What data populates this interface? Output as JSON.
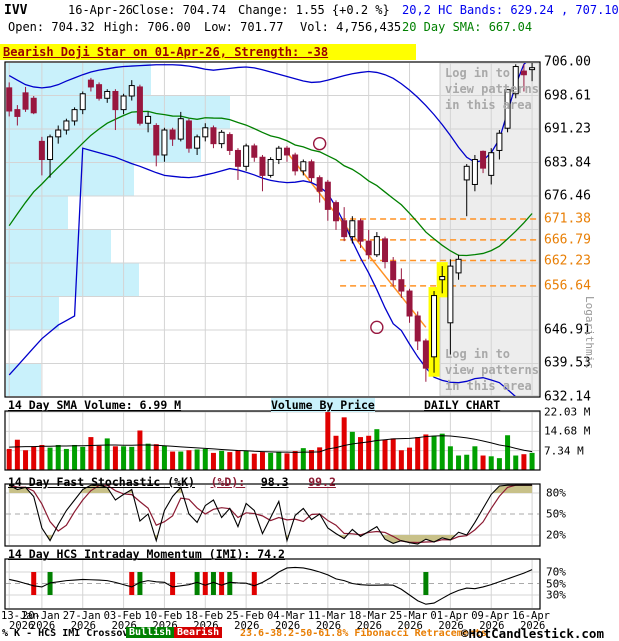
{
  "header": {
    "symbol": "IVV",
    "date": "16-Apr-26",
    "close_label": "Close: 704.74",
    "change_label": "Change: 1.55 {+0.2 %}",
    "bands_label": "20,2 HC Bands: 629.24 , 707.10",
    "open_label": "Open: 704.32",
    "high_label": "High: 706.00",
    "low_label": "Low: 701.77",
    "vol_label": "Vol: 4,756,435",
    "sma_label": "20 Day SMA: 667.04"
  },
  "pattern_banner": "Bearish Doji Star on 01-Apr-26, Strength: -38",
  "login": {
    "line1": "Log in to",
    "line2": "view patterns",
    "line3": "in this area"
  },
  "axis": {
    "log_label": "Logarithmic",
    "volume_labels": [
      "22.03 M",
      "14.68 M",
      "7.34 M"
    ],
    "stoch_labels": [
      "80%",
      "50%",
      "20%"
    ],
    "imi_labels": [
      "70%",
      "50%",
      "30%"
    ]
  },
  "panels": {
    "volume_title": "14 Day SMA Volume: 6.99 M",
    "vbp_title": "Volume By Price",
    "daily_chart": "DAILY CHART",
    "stoch_title": "14 Day Fast Stochastic (%K)",
    "stoch_d_label": "(%D):",
    "stoch_k_val": "98.3",
    "stoch_d_val": "99.2",
    "imi_title": "14 Day HCS Intraday Momentum (IMI): 74.2"
  },
  "legend": {
    "crossover": "% K - HCS IMI Crossover,",
    "bullish": "Bullish",
    "bearish": "Bearish",
    "fib": "23.6-38.2-50-61.8% Fibonacci Retracements",
    "copyright": "©HotCandlestick.com"
  },
  "colors": {
    "bear": "#98173f",
    "bull_fill": "#ffffff",
    "bull_stroke": "#000000",
    "band_blue": "#0000cc",
    "sma_green": "#008000",
    "fib_orange": "#ff9224",
    "fib_label": "#e87e04",
    "vbp_cyan": "#c9f1fb",
    "grid": "#d4d4d4",
    "vol_up": "#00a000",
    "vol_down": "#e00000",
    "stoch_d": "#8b1a32",
    "olive": "#c8c189",
    "overlay_bg": "#ededed",
    "overlay_border": "#c8c8c8",
    "highlight": "#ffff00",
    "marker_bull": "#008000",
    "marker_bear": "#e00000"
  },
  "chart_data": {
    "type": "candlestick",
    "title": "IVV daily candlestick chart with 20,2 HC Bands, 20-day SMA, Fibonacci retracements, volume, fast stochastic and intraday momentum",
    "n": 65,
    "ylim": [
      632.14,
      706.0
    ],
    "scale": "Logarithmic",
    "gridline_prices": [
      706.0,
      698.61,
      691.23,
      683.84,
      676.46,
      669.07,
      661.68,
      654.3,
      646.91,
      639.53,
      632.14
    ],
    "price_labels": [
      {
        "v": 706.0,
        "t": "706.00",
        "c": "#000000"
      },
      {
        "v": 698.61,
        "t": "698.61",
        "c": "#000000"
      },
      {
        "v": 691.23,
        "t": "691.23",
        "c": "#000000"
      },
      {
        "v": 683.84,
        "t": "683.84",
        "c": "#000000"
      },
      {
        "v": 676.46,
        "t": "676.46",
        "c": "#000000"
      },
      {
        "v": 671.38,
        "t": "671.38",
        "c": "#e87e04"
      },
      {
        "v": 666.79,
        "t": "666.79",
        "c": "#e87e04"
      },
      {
        "v": 662.23,
        "t": "662.23",
        "c": "#e87e04"
      },
      {
        "v": 656.64,
        "t": "656.64",
        "c": "#e87e04"
      },
      {
        "v": 646.91,
        "t": "646.91",
        "c": "#000000"
      },
      {
        "v": 639.53,
        "t": "639.53",
        "c": "#000000"
      },
      {
        "v": 632.14,
        "t": "632.14",
        "c": "#000000"
      }
    ],
    "fib_levels": [
      671.38,
      666.79,
      662.23,
      656.64
    ],
    "fib_dash_start_index": 40.5,
    "fib_diagonal": {
      "i1": 34,
      "p1": 686.1,
      "i2": 51,
      "p2": 647.5
    },
    "candles": [
      [
        700.3,
        701.5,
        694.0,
        695.2
      ],
      [
        695.5,
        696.5,
        692.0,
        694.0
      ],
      [
        699.2,
        700.5,
        695.0,
        695.6
      ],
      [
        698.0,
        698.5,
        694.5,
        694.8
      ],
      [
        688.5,
        689.5,
        681.0,
        684.5
      ],
      [
        684.5,
        690.0,
        680.5,
        689.5
      ],
      [
        689.5,
        692.0,
        688.0,
        691.0
      ],
      [
        691.0,
        693.5,
        690.0,
        693.0
      ],
      [
        693.0,
        696.0,
        692.0,
        695.5
      ],
      [
        695.5,
        699.5,
        694.5,
        699.0
      ],
      [
        702.0,
        702.5,
        699.5,
        700.5
      ],
      [
        701.0,
        701.5,
        697.5,
        698.0
      ],
      [
        698.0,
        700.0,
        697.0,
        699.5
      ],
      [
        699.5,
        700.0,
        691.0,
        695.5
      ],
      [
        695.5,
        699.0,
        694.5,
        698.5
      ],
      [
        698.5,
        702.0,
        697.5,
        700.8
      ],
      [
        700.5,
        701.0,
        692.0,
        692.5
      ],
      [
        692.5,
        695.0,
        690.5,
        694.0
      ],
      [
        692.0,
        692.5,
        683.0,
        685.5
      ],
      [
        685.5,
        691.5,
        684.0,
        691.0
      ],
      [
        691.0,
        691.5,
        687.5,
        689.0
      ],
      [
        689.0,
        695.0,
        688.5,
        693.5
      ],
      [
        693.0,
        693.5,
        686.0,
        687.0
      ],
      [
        687.0,
        690.0,
        685.5,
        689.5
      ],
      [
        689.5,
        692.5,
        688.5,
        691.5
      ],
      [
        691.5,
        692.0,
        687.0,
        688.0
      ],
      [
        688.0,
        691.0,
        687.0,
        690.5
      ],
      [
        690.0,
        690.5,
        685.5,
        686.5
      ],
      [
        686.5,
        687.0,
        680.0,
        683.0
      ],
      [
        683.0,
        688.0,
        682.0,
        687.5
      ],
      [
        687.5,
        688.0,
        684.0,
        685.0
      ],
      [
        685.0,
        685.5,
        677.5,
        681.0
      ],
      [
        681.0,
        685.0,
        680.5,
        684.5
      ],
      [
        684.5,
        687.5,
        683.5,
        687.0
      ],
      [
        687.0,
        687.5,
        684.0,
        685.5
      ],
      [
        685.5,
        686.0,
        681.0,
        682.0
      ],
      [
        682.0,
        684.5,
        681.0,
        684.0
      ],
      [
        684.0,
        684.5,
        679.5,
        680.5
      ],
      [
        680.5,
        681.0,
        675.0,
        677.5
      ],
      [
        679.5,
        680.0,
        671.0,
        673.5
      ],
      [
        675.0,
        675.5,
        669.0,
        671.0
      ],
      [
        671.0,
        674.0,
        666.5,
        667.5
      ],
      [
        667.5,
        672.0,
        666.0,
        671.0
      ],
      [
        671.0,
        671.5,
        665.0,
        666.5
      ],
      [
        666.5,
        669.0,
        662.5,
        663.5
      ],
      [
        663.5,
        668.5,
        663.0,
        667.5
      ],
      [
        667.0,
        667.5,
        660.5,
        662.0
      ],
      [
        662.0,
        663.0,
        656.5,
        658.0
      ],
      [
        658.0,
        660.5,
        654.0,
        655.5
      ],
      [
        655.5,
        656.0,
        648.5,
        650.0
      ],
      [
        650.0,
        651.0,
        642.5,
        644.5
      ],
      [
        644.5,
        645.0,
        635.5,
        638.5
      ],
      [
        641.0,
        655.5,
        637.5,
        654.5
      ],
      [
        658.0,
        661.0,
        655.0,
        658.7
      ],
      [
        648.5,
        662.5,
        641.5,
        661.0
      ],
      [
        659.5,
        663.5,
        658.0,
        662.5
      ],
      [
        680.0,
        683.5,
        672.0,
        683.0
      ],
      [
        679.0,
        685.5,
        677.5,
        684.5
      ],
      [
        686.3,
        686.5,
        681.5,
        682.6
      ],
      [
        681.0,
        687.0,
        679.0,
        686.0
      ],
      [
        686.5,
        691.0,
        684.5,
        690.3
      ],
      [
        691.4,
        700.0,
        690.5,
        699.9
      ],
      [
        699.0,
        705.5,
        698.0,
        705.0
      ],
      [
        704.0,
        705.5,
        699.5,
        703.19
      ],
      [
        704.32,
        706.0,
        701.77,
        704.74
      ]
    ],
    "prior_closes": [
      640,
      642,
      645,
      648,
      650,
      652,
      655,
      658,
      660,
      663,
      666,
      670,
      674,
      678,
      682,
      686,
      690,
      693,
      695,
      696
    ],
    "upper_band": [
      703,
      702,
      701,
      700.5,
      700.3,
      700.5,
      701,
      701.8,
      702.5,
      703.2,
      703.8,
      704.2,
      704.5,
      704.8,
      705,
      705.1,
      705.2,
      705.3,
      705.4,
      705.4,
      705.4,
      705.3,
      705.1,
      704.8,
      704.4,
      704.2,
      704.4,
      704.6,
      704.8,
      704.9,
      704.7,
      704.3,
      703.8,
      703.3,
      702.8,
      702.3,
      701.8,
      701.5,
      701.6,
      702,
      702.5,
      703,
      703.4,
      703.7,
      703.9,
      703.7,
      703.2,
      702.4,
      701.2,
      699.8,
      698.2,
      696.4,
      694.4,
      692.2,
      689.8,
      687.2,
      685,
      683.9,
      684.3,
      686,
      689,
      695,
      701,
      705.5,
      707.1
    ],
    "lower_band": [
      637,
      639,
      641,
      643,
      645,
      646.5,
      648,
      649,
      650,
      687,
      686.5,
      686,
      685.5,
      685,
      684.3,
      683.6,
      683,
      682.3,
      681.6,
      681,
      680.8,
      680.6,
      680.5,
      680.7,
      681.1,
      681.5,
      682,
      682.5,
      682.2,
      681.7,
      681.1,
      680.4,
      679.9,
      679.6,
      679.4,
      679.5,
      679.8,
      679.4,
      678.5,
      677,
      674,
      670.5,
      666.5,
      662.8,
      659.5,
      655.8,
      651.8,
      648.3,
      646.8,
      643.8,
      641,
      638.6,
      636.5,
      635.8,
      635.4,
      635.3,
      635.6,
      636.2,
      636.4,
      635.9,
      635.3,
      633.8,
      632.2,
      630.8,
      629.24
    ],
    "volume_m": [
      8,
      11.5,
      7.5,
      9,
      9.5,
      8.5,
      9.5,
      8,
      9.5,
      8.8,
      12.5,
      9.2,
      12,
      9,
      9,
      8.8,
      15,
      10,
      9.8,
      9.3,
      7,
      7,
      7.5,
      7.8,
      8,
      6.5,
      7.3,
      6.8,
      7.5,
      7.2,
      6.2,
      6.8,
      6.5,
      7,
      6.3,
      7.2,
      8.3,
      7.6,
      8.6,
      22,
      13,
      20,
      14.5,
      12.5,
      13,
      15.5,
      11.5,
      12,
      7.5,
      8.5,
      12.5,
      13.5,
      13,
      13.8,
      9,
      5.5,
      5.8,
      9,
      5.5,
      5.2,
      4.5,
      13.2,
      5.5,
      6,
      6.5
    ],
    "volume_sma_m": [
      8.7,
      8.8,
      8.9,
      8.9,
      9,
      9,
      9.1,
      9.1,
      9.2,
      9.2,
      9.3,
      9.4,
      9.5,
      9.5,
      9.4,
      9.4,
      9.5,
      9.5,
      9.4,
      9.2,
      9,
      8.8,
      8.6,
      8.4,
      8.2,
      8,
      7.8,
      7.6,
      7.4,
      7.3,
      7.1,
      7,
      6.9,
      6.8,
      6.8,
      6.7,
      6.8,
      6.8,
      6.9,
      8,
      8.5,
      9.3,
      9.9,
      10.3,
      10.7,
      11.2,
      11.5,
      11.8,
      11.9,
      12,
      12.3,
      12.7,
      12.9,
      13,
      12.9,
      12.6,
      12.2,
      11.7,
      11,
      10.3,
      9.5,
      9,
      8.2,
      7.5,
      6.99
    ],
    "volume_gridlines": [
      7.34,
      14.68,
      22.03
    ],
    "stoch_k": [
      92,
      85,
      88,
      75,
      30,
      12,
      35,
      55,
      70,
      85,
      95,
      92,
      88,
      70,
      78,
      85,
      40,
      50,
      12,
      55,
      75,
      88,
      50,
      38,
      62,
      70,
      45,
      58,
      32,
      65,
      55,
      22,
      45,
      68,
      12,
      48,
      58,
      42,
      50,
      30,
      22,
      15,
      28,
      18,
      25,
      32,
      14,
      8,
      12,
      9,
      7,
      14,
      10,
      16,
      13,
      24,
      20,
      38,
      58,
      78,
      90,
      96,
      99,
      99,
      98.3
    ],
    "stoch_thresholds": [
      80,
      50,
      20
    ],
    "imi": [
      57,
      54,
      50,
      46,
      44,
      51,
      53,
      55,
      56,
      57,
      56.5,
      56,
      55,
      52,
      48,
      44,
      52,
      55,
      53,
      52,
      44,
      46,
      48,
      52,
      47,
      52,
      47,
      52,
      51,
      50.5,
      46,
      52,
      60,
      70,
      77,
      78,
      77,
      74,
      70,
      65,
      58,
      55,
      50,
      48,
      47,
      47,
      47.5,
      47,
      40,
      30,
      20,
      14,
      16,
      24,
      32,
      38,
      42,
      41,
      44,
      48,
      53,
      58,
      63,
      68,
      74.2
    ],
    "imi_thresholds": [
      70,
      50,
      30
    ],
    "imi_markers": [
      {
        "i": 3,
        "t": "bearish"
      },
      {
        "i": 5,
        "t": "bullish"
      },
      {
        "i": 15,
        "t": "bearish"
      },
      {
        "i": 16,
        "t": "bullish"
      },
      {
        "i": 20,
        "t": "bearish"
      },
      {
        "i": 23,
        "t": "bullish"
      },
      {
        "i": 24,
        "t": "bearish"
      },
      {
        "i": 25,
        "t": "bullish"
      },
      {
        "i": 26,
        "t": "bearish"
      },
      {
        "i": 27,
        "t": "bullish"
      },
      {
        "i": 30,
        "t": "bearish"
      },
      {
        "i": 51,
        "t": "bullish"
      }
    ],
    "vbp_bands": [
      {
        "p1": 698.61,
        "p2": 706.0,
        "len": 145
      },
      {
        "p1": 691.23,
        "p2": 698.61,
        "len": 224
      },
      {
        "p1": 683.84,
        "p2": 691.23,
        "len": 195
      },
      {
        "p1": 676.46,
        "p2": 683.84,
        "len": 128
      },
      {
        "p1": 669.07,
        "p2": 676.46,
        "len": 62
      },
      {
        "p1": 661.68,
        "p2": 669.07,
        "len": 105
      },
      {
        "p1": 654.3,
        "p2": 661.68,
        "len": 133
      },
      {
        "p1": 646.91,
        "p2": 654.3,
        "len": 53
      },
      {
        "p1": 639.53,
        "p2": 646.91,
        "len": 0
      },
      {
        "p1": 632.14,
        "p2": 639.53,
        "len": 35
      }
    ],
    "pattern_circles": [
      {
        "i": 38,
        "p": 688
      },
      {
        "i": 45,
        "p": 647.5
      }
    ],
    "highlighted_candles": [
      52,
      53
    ],
    "overlay_region_start_index": 53,
    "date_ticks": [
      {
        "i": 0,
        "d": "13-Jan",
        "y": "2026"
      },
      {
        "i": 4,
        "d": "20-Jan",
        "y": "2026"
      },
      {
        "i": 9,
        "d": "27-Jan",
        "y": "2026"
      },
      {
        "i": 14,
        "d": "03-Feb",
        "y": "2026"
      },
      {
        "i": 19,
        "d": "10-Feb",
        "y": "2026"
      },
      {
        "i": 24,
        "d": "18-Feb",
        "y": "2026"
      },
      {
        "i": 29,
        "d": "25-Feb",
        "y": "2026"
      },
      {
        "i": 34,
        "d": "04-Mar",
        "y": "2026"
      },
      {
        "i": 39,
        "d": "11-Mar",
        "y": "2026"
      },
      {
        "i": 44,
        "d": "18-Mar",
        "y": "2026"
      },
      {
        "i": 49,
        "d": "25-Mar",
        "y": "2026"
      },
      {
        "i": 54,
        "d": "01-Apr",
        "y": "2026"
      },
      {
        "i": 59,
        "d": "09-Apr",
        "y": "2026"
      },
      {
        "i": 64,
        "d": "16-Apr",
        "y": "2026"
      }
    ]
  }
}
